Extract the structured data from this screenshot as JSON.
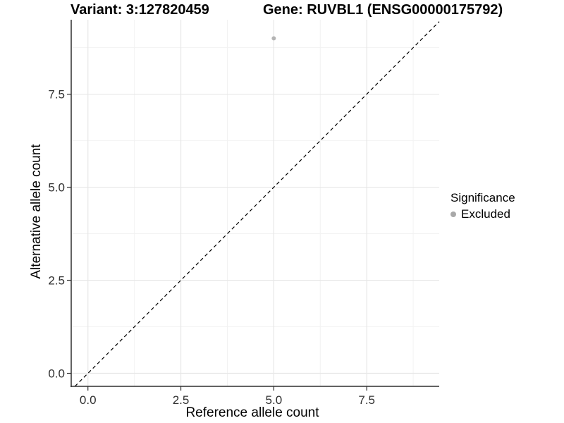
{
  "header": {
    "variant_title": "Variant: 3:127820459",
    "gene_title": "Gene: RUVBL1 (ENSG00000175792)"
  },
  "colors": {
    "point": "#b4b4b4",
    "legend_point": "#a8a8a8",
    "grid_major": "#e7e7e7",
    "grid_minor": "#f2f2f2",
    "axis": "#2f2f2f",
    "identity_line": "#000000",
    "tick_text": "#303030",
    "background": "#ffffff"
  },
  "chart_data": {
    "type": "scatter",
    "title_left": "Variant: 3:127820459",
    "title_right": "Gene: RUVBL1 (ENSG00000175792)",
    "xlabel": "Reference allele count",
    "ylabel": "Alternative allele count",
    "xlim": [
      -0.45,
      9.45
    ],
    "ylim": [
      -0.35,
      9.5
    ],
    "x_ticks": [
      0.0,
      2.5,
      5.0,
      7.5
    ],
    "y_ticks": [
      0.0,
      2.5,
      5.0,
      7.5
    ],
    "x_tick_labels": [
      "0.0",
      "2.5",
      "5.0",
      "7.5"
    ],
    "y_tick_labels": [
      "0.0",
      "2.5",
      "5.0",
      "7.5"
    ],
    "x_minor_ticks": [
      1.25,
      3.75,
      6.25,
      8.75
    ],
    "y_minor_ticks": [
      1.25,
      3.75,
      6.25,
      8.75
    ],
    "grid": true,
    "points": [
      {
        "x": 5,
        "y": 9,
        "series": "Excluded"
      }
    ],
    "identity_line": {
      "slope": 1,
      "intercept": 0,
      "style": "dashed"
    },
    "legend": {
      "position": "right",
      "title": "Significance",
      "items": [
        {
          "label": "Excluded",
          "marker": "dot"
        }
      ]
    }
  }
}
